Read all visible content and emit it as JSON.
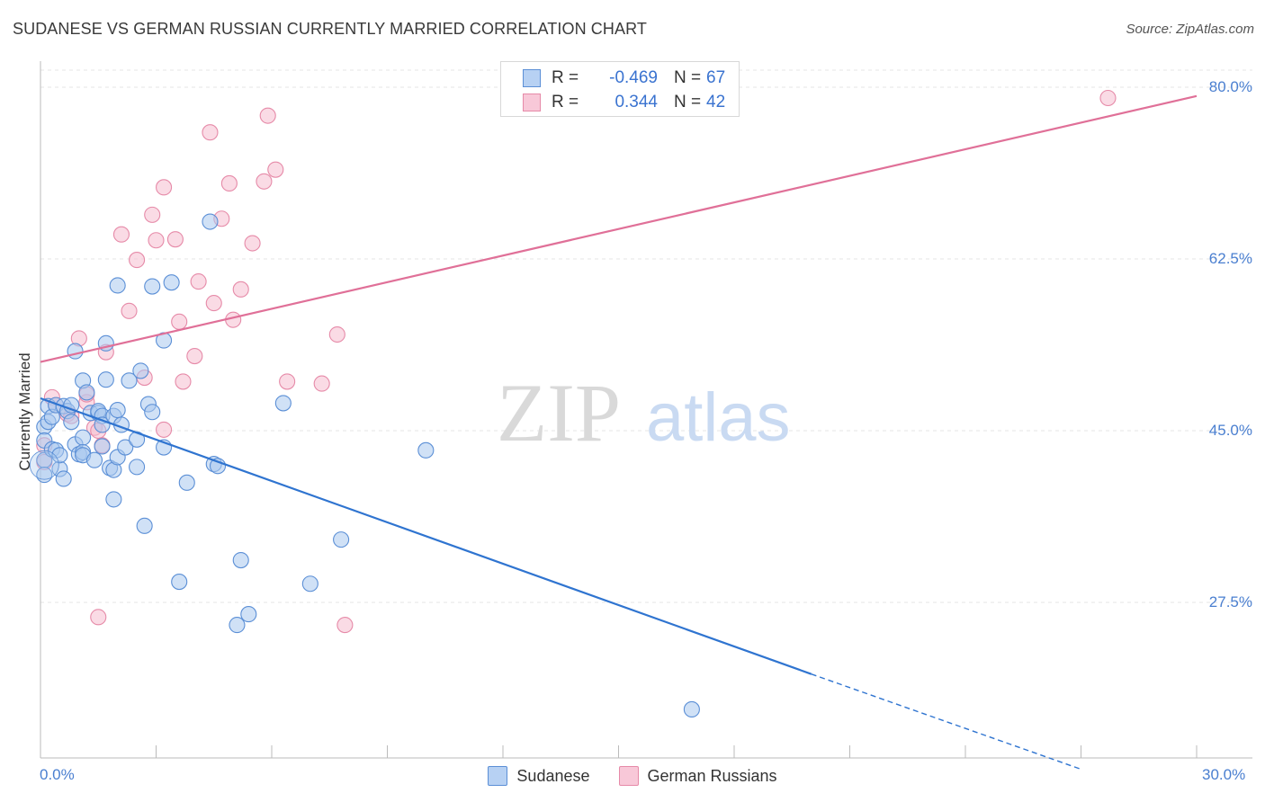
{
  "header": {
    "title": "SUDANESE VS GERMAN RUSSIAN CURRENTLY MARRIED CORRELATION CHART",
    "source": "Source: ZipAtlas.com"
  },
  "legend_top": {
    "rows": [
      {
        "r_label": "R =",
        "r_value": "-0.469",
        "n_label": "N =",
        "n_value": "67"
      },
      {
        "r_label": "R =",
        "r_value": "0.344",
        "n_label": "N =",
        "n_value": "42"
      }
    ]
  },
  "watermark": {
    "zip": "ZIP",
    "atlas": "atlas"
  },
  "colors": {
    "sudanese_fill": "#a9c8ef",
    "sudanese_stroke": "#5b8fd6",
    "sudanese_line": "#2f74d0",
    "german_fill": "#f6bdd0",
    "german_stroke": "#e68aa8",
    "german_line": "#e07098",
    "tick_text": "#4a7fd0",
    "grid": "#e6e6e6"
  },
  "chart_data": {
    "type": "scatter",
    "title": "SUDANESE VS GERMAN RUSSIAN CURRENTLY MARRIED CORRELATION CHART",
    "xlabel": "",
    "ylabel": "Currently Married",
    "xlim": [
      0,
      30
    ],
    "ylim": [
      10,
      85
    ],
    "x_tick_labels": [
      "0.0%",
      "30.0%"
    ],
    "y_ticks": [
      27.5,
      45.0,
      62.5,
      80.0
    ],
    "y_tick_labels": [
      "27.5%",
      "45.0%",
      "62.5%",
      "80.0%"
    ],
    "grid": "horizontal dashed",
    "legend": "bottom-center",
    "series": [
      {
        "name": "Sudanese",
        "r": -0.469,
        "n": 67,
        "trend": {
          "x0": 0,
          "y0": 48.3,
          "x1": 20,
          "y1": 20.2,
          "dashed_to_x": 27,
          "dashed_to_y": 10.5
        },
        "points": [
          [
            0.1,
            45.4
          ],
          [
            0.1,
            42.0
          ],
          [
            0.1,
            44.0
          ],
          [
            0.2,
            47.5
          ],
          [
            0.2,
            45.9
          ],
          [
            0.3,
            46.4
          ],
          [
            0.3,
            43.1
          ],
          [
            0.4,
            43.0
          ],
          [
            0.4,
            47.6
          ],
          [
            0.5,
            41.1
          ],
          [
            0.5,
            42.5
          ],
          [
            0.6,
            40.1
          ],
          [
            0.6,
            47.5
          ],
          [
            0.7,
            47.0
          ],
          [
            0.8,
            47.6
          ],
          [
            0.8,
            45.9
          ],
          [
            0.9,
            53.1
          ],
          [
            0.9,
            43.6
          ],
          [
            1.0,
            42.6
          ],
          [
            1.1,
            44.3
          ],
          [
            1.1,
            42.8
          ],
          [
            1.1,
            42.5
          ],
          [
            1.1,
            50.1
          ],
          [
            1.2,
            48.9
          ],
          [
            1.3,
            46.8
          ],
          [
            1.4,
            42.0
          ],
          [
            1.5,
            46.8
          ],
          [
            1.5,
            47.0
          ],
          [
            1.6,
            46.5
          ],
          [
            1.6,
            43.4
          ],
          [
            1.6,
            45.6
          ],
          [
            1.7,
            53.9
          ],
          [
            1.7,
            50.2
          ],
          [
            1.8,
            41.2
          ],
          [
            1.9,
            38.0
          ],
          [
            1.9,
            41.0
          ],
          [
            1.9,
            46.5
          ],
          [
            2.0,
            59.8
          ],
          [
            2.0,
            42.3
          ],
          [
            2.0,
            47.1
          ],
          [
            2.1,
            45.6
          ],
          [
            2.2,
            43.3
          ],
          [
            2.3,
            50.1
          ],
          [
            2.5,
            44.1
          ],
          [
            2.5,
            41.3
          ],
          [
            2.6,
            51.1
          ],
          [
            2.7,
            35.3
          ],
          [
            2.8,
            47.7
          ],
          [
            2.9,
            46.9
          ],
          [
            2.9,
            59.7
          ],
          [
            3.2,
            54.2
          ],
          [
            3.2,
            43.3
          ],
          [
            3.4,
            60.1
          ],
          [
            3.6,
            29.6
          ],
          [
            3.8,
            39.7
          ],
          [
            4.4,
            66.3
          ],
          [
            4.5,
            41.6
          ],
          [
            4.6,
            41.4
          ],
          [
            5.1,
            25.2
          ],
          [
            5.2,
            31.8
          ],
          [
            5.4,
            26.3
          ],
          [
            6.3,
            47.8
          ],
          [
            7.0,
            29.4
          ],
          [
            7.8,
            33.9
          ],
          [
            10.0,
            43.0
          ],
          [
            16.9,
            16.6
          ],
          [
            0.1,
            40.5
          ]
        ]
      },
      {
        "name": "German Russians",
        "r": 0.344,
        "n": 42,
        "trend": {
          "x0": 0,
          "y0": 52.0,
          "x1": 30,
          "y1": 79.1
        },
        "points": [
          [
            0.1,
            41.8
          ],
          [
            0.1,
            43.5
          ],
          [
            0.3,
            48.4
          ],
          [
            0.4,
            47.6
          ],
          [
            0.7,
            46.7
          ],
          [
            0.8,
            46.5
          ],
          [
            1.0,
            54.4
          ],
          [
            1.2,
            47.9
          ],
          [
            1.2,
            48.7
          ],
          [
            1.4,
            45.3
          ],
          [
            1.5,
            45.0
          ],
          [
            1.6,
            43.5
          ],
          [
            1.7,
            53.0
          ],
          [
            2.1,
            65.0
          ],
          [
            2.3,
            57.2
          ],
          [
            2.5,
            62.4
          ],
          [
            2.7,
            50.4
          ],
          [
            2.9,
            67.0
          ],
          [
            3.0,
            64.4
          ],
          [
            3.2,
            45.1
          ],
          [
            3.2,
            69.8
          ],
          [
            3.5,
            64.5
          ],
          [
            3.6,
            56.1
          ],
          [
            3.7,
            50.0
          ],
          [
            4.0,
            52.6
          ],
          [
            4.1,
            60.2
          ],
          [
            4.4,
            75.4
          ],
          [
            4.5,
            58.0
          ],
          [
            4.7,
            66.6
          ],
          [
            4.9,
            70.2
          ],
          [
            5.0,
            56.3
          ],
          [
            5.2,
            59.4
          ],
          [
            5.5,
            64.1
          ],
          [
            5.8,
            70.4
          ],
          [
            5.9,
            77.1
          ],
          [
            6.1,
            71.6
          ],
          [
            6.4,
            50.0
          ],
          [
            7.3,
            49.8
          ],
          [
            7.7,
            54.8
          ],
          [
            7.9,
            25.2
          ],
          [
            1.5,
            26.0
          ],
          [
            27.7,
            78.9
          ]
        ]
      }
    ]
  }
}
